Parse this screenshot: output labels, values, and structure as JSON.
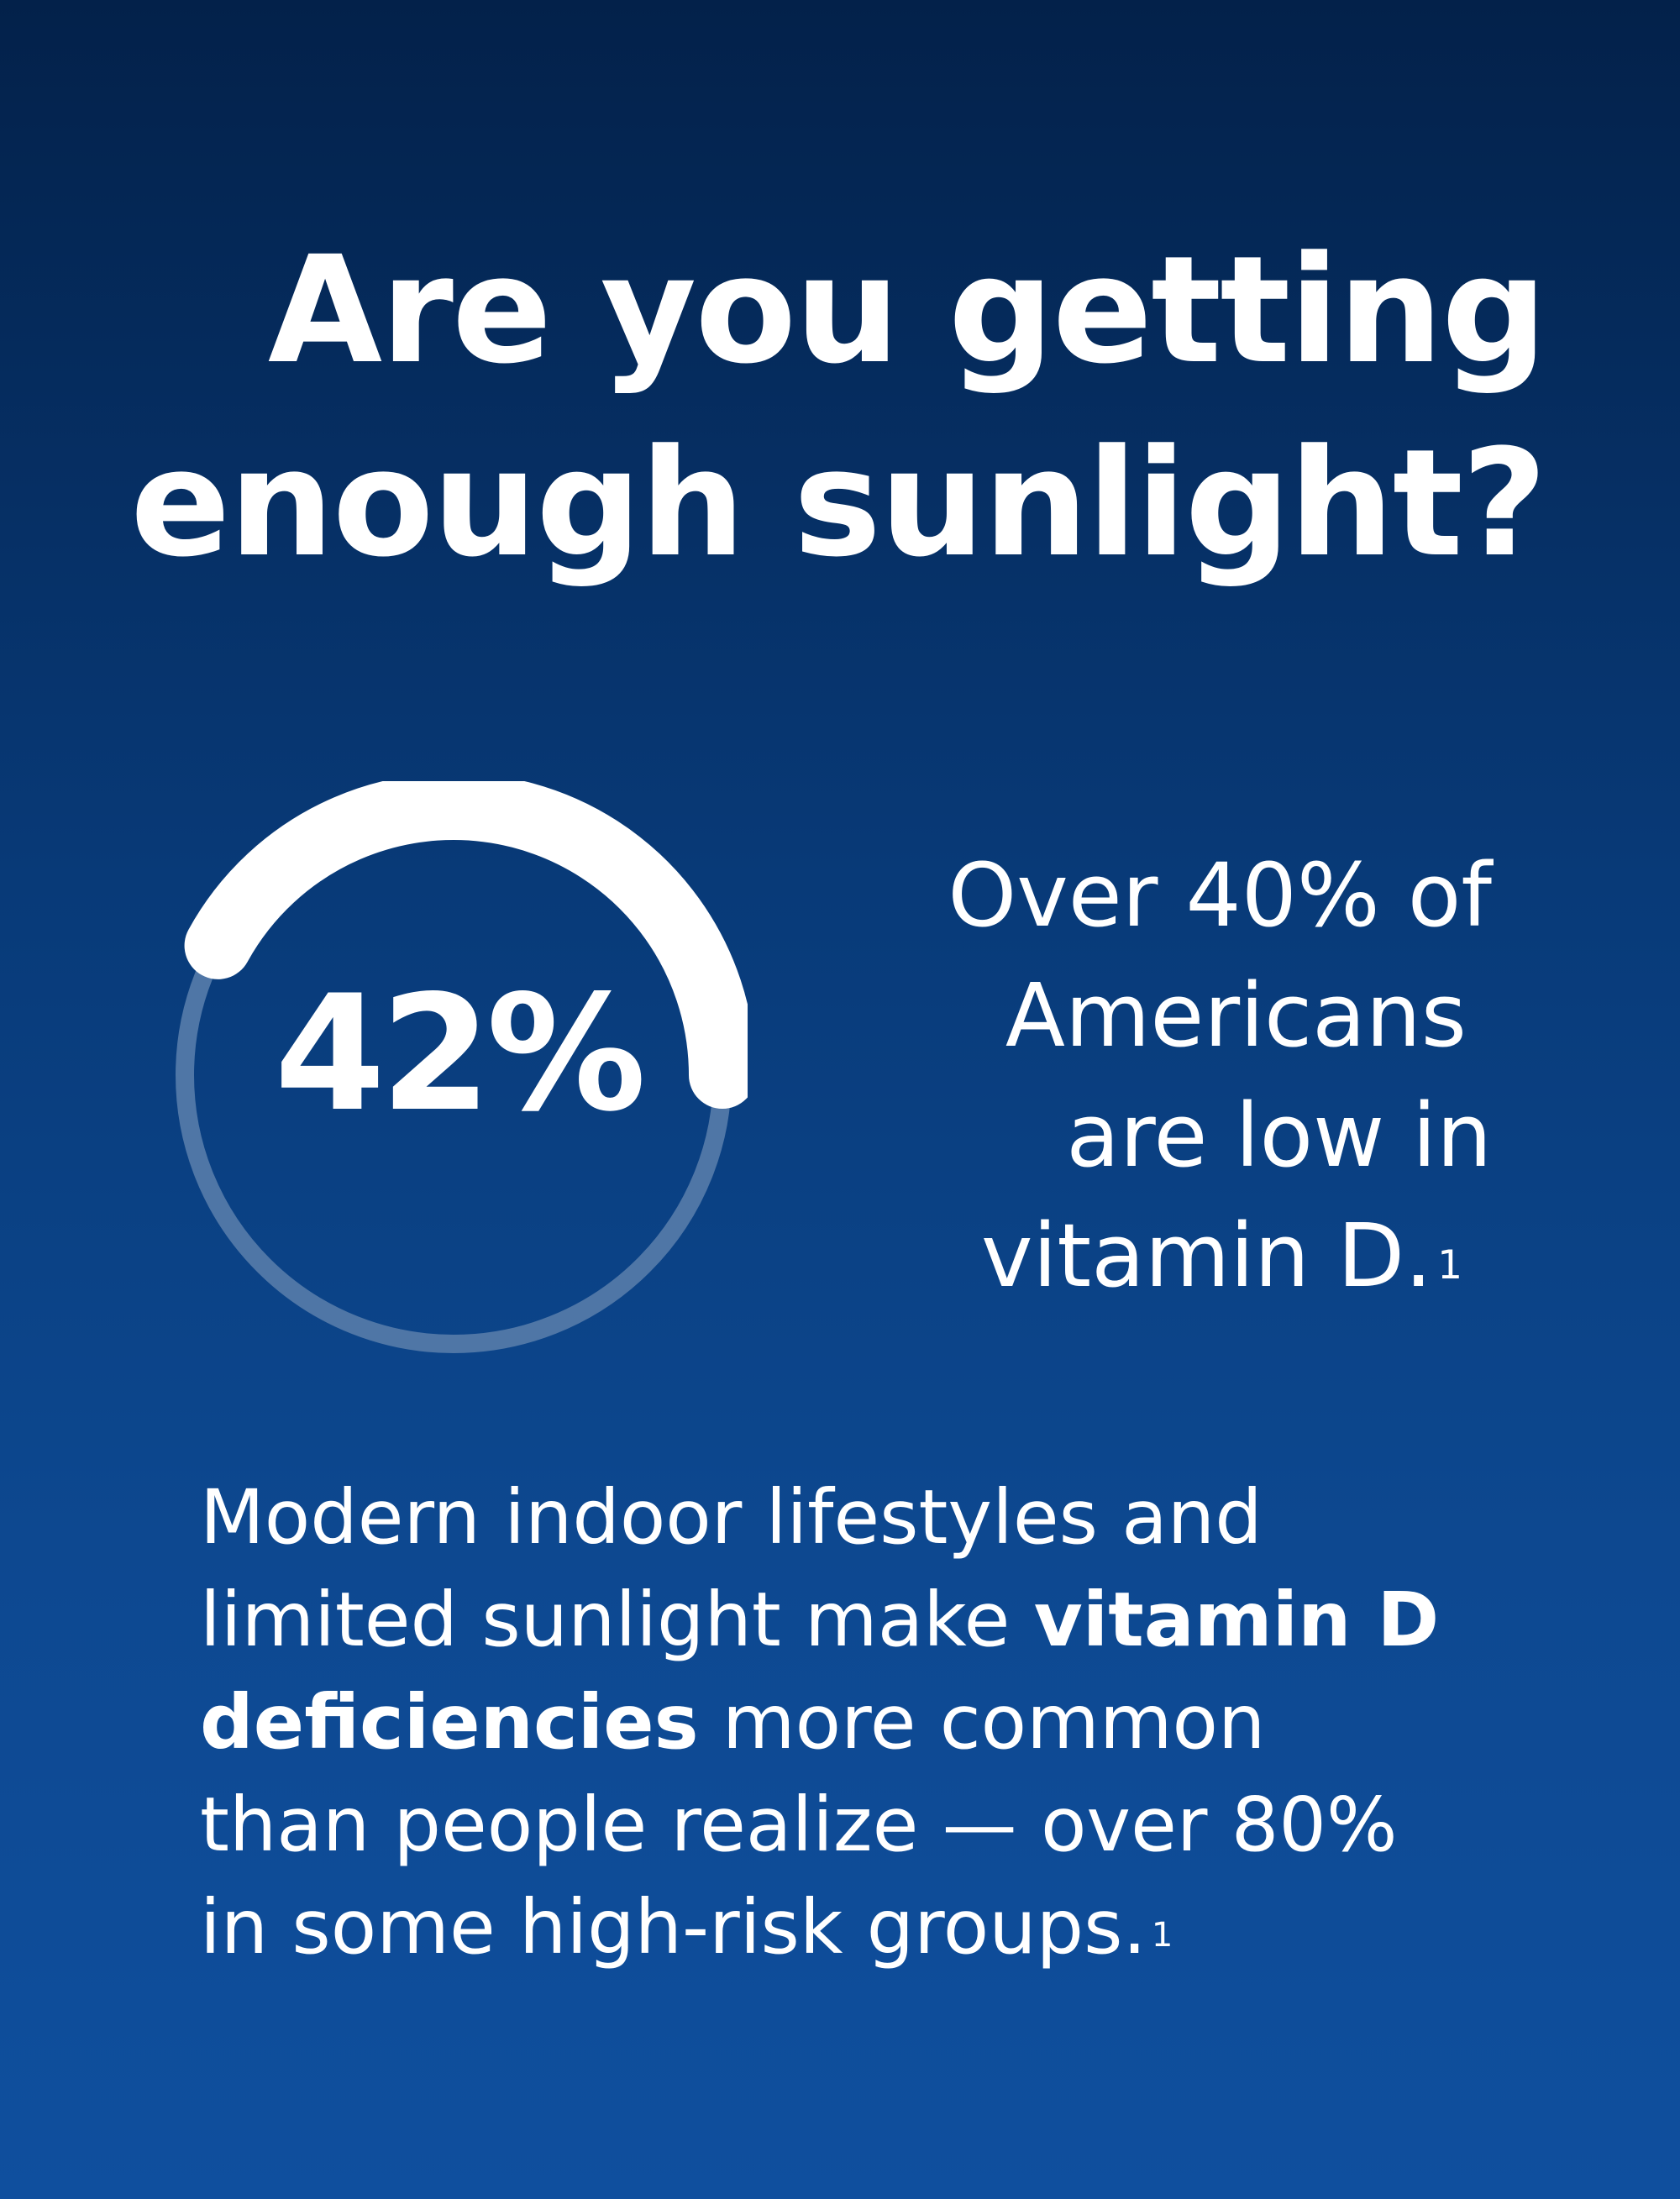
{
  "headline": {
    "line1": "Are you getting",
    "line2": "enough sunlight?"
  },
  "gauge": {
    "value_label": "42%",
    "fill_fraction": 0.42,
    "track_color": "#4f76a6",
    "fill_color": "#ffffff"
  },
  "stat": {
    "line1": "Over 40% of",
    "line2": "Americans",
    "line3": "are low in",
    "line4": "vitamin D.",
    "footnote": "1"
  },
  "body": {
    "line1": "Modern indoor lifestyles and",
    "line2_pre": "limited sunlight make ",
    "line2_bold": "vitamin D",
    "line3_bold": "deficiencies",
    "line3_post": " more common",
    "line4": "than people realize — over 80%",
    "line5": "in some high-risk groups.",
    "footnote": "1"
  },
  "colors": {
    "background_top": "#03214a",
    "background_bottom": "#0f4f9e",
    "text": "#ffffff"
  }
}
